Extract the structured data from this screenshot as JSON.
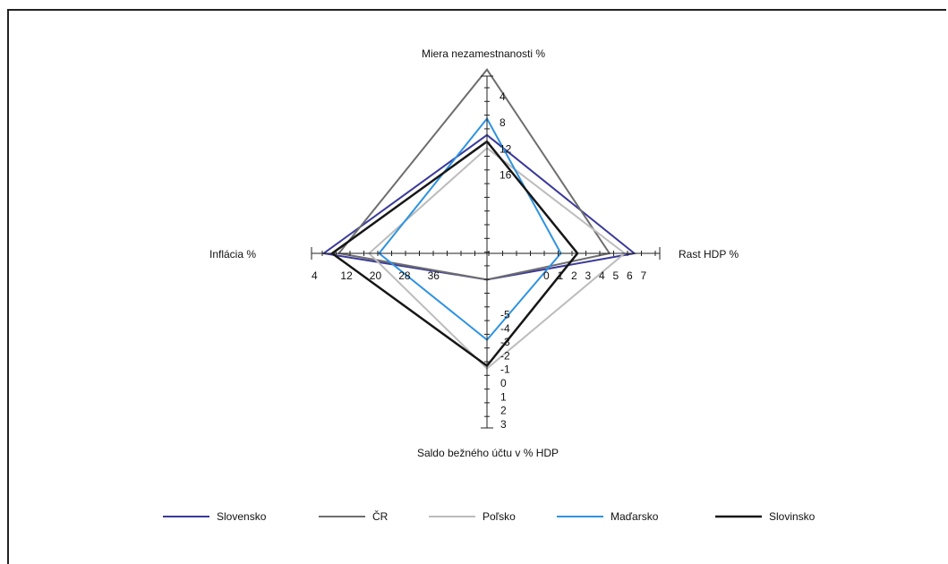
{
  "chart_data": {
    "type": "radar",
    "axes": [
      {
        "key": "top",
        "label": "Miera nezamestnanosti %",
        "ticks": [
          "4",
          "8",
          "12",
          "16"
        ],
        "range": [
          4,
          20
        ],
        "direction": "inward"
      },
      {
        "key": "right",
        "label": "Rast HDP %",
        "ticks": [
          "0",
          "1",
          "2",
          "3",
          "4",
          "5",
          "6",
          "7"
        ],
        "range": [
          -2,
          7
        ]
      },
      {
        "key": "bottom",
        "label": "Saldo bežného účtu v % HDP",
        "ticks": [
          "-5",
          "-4",
          "-3",
          "-2",
          "-1",
          "0",
          "1",
          "2",
          "3"
        ],
        "range": [
          -8,
          3
        ],
        "direction": "inward"
      },
      {
        "key": "left",
        "label": "Inflácia %",
        "ticks": [
          "4",
          "12",
          "20",
          "28",
          "36"
        ],
        "range": [
          4,
          48
        ],
        "direction": "inward"
      }
    ],
    "series": [
      {
        "name": "Slovensko",
        "color": "#3a3a9a",
        "width": 2,
        "values": {
          "top": 13,
          "right": 6.3,
          "bottom": -7.5,
          "left": 5.5
        }
      },
      {
        "name": "ČR",
        "color": "#6e6e6e",
        "width": 2,
        "values": {
          "top": 3,
          "right": 4.5,
          "bottom": -7.5,
          "left": 10
        }
      },
      {
        "name": "Poľsko",
        "color": "#bcbcbc",
        "width": 2,
        "values": {
          "top": 15,
          "right": 5.6,
          "bottom": -1,
          "left": 19
        }
      },
      {
        "name": "Maďarsko",
        "color": "#2e93e0",
        "width": 2,
        "values": {
          "top": 10.5,
          "right": 1,
          "bottom": -3.1,
          "left": 22
        }
      },
      {
        "name": "Slovinsko",
        "color": "#161616",
        "width": 2.5,
        "values": {
          "top": 14,
          "right": 2.2,
          "bottom": -1.2,
          "left": 8
        }
      }
    ]
  }
}
